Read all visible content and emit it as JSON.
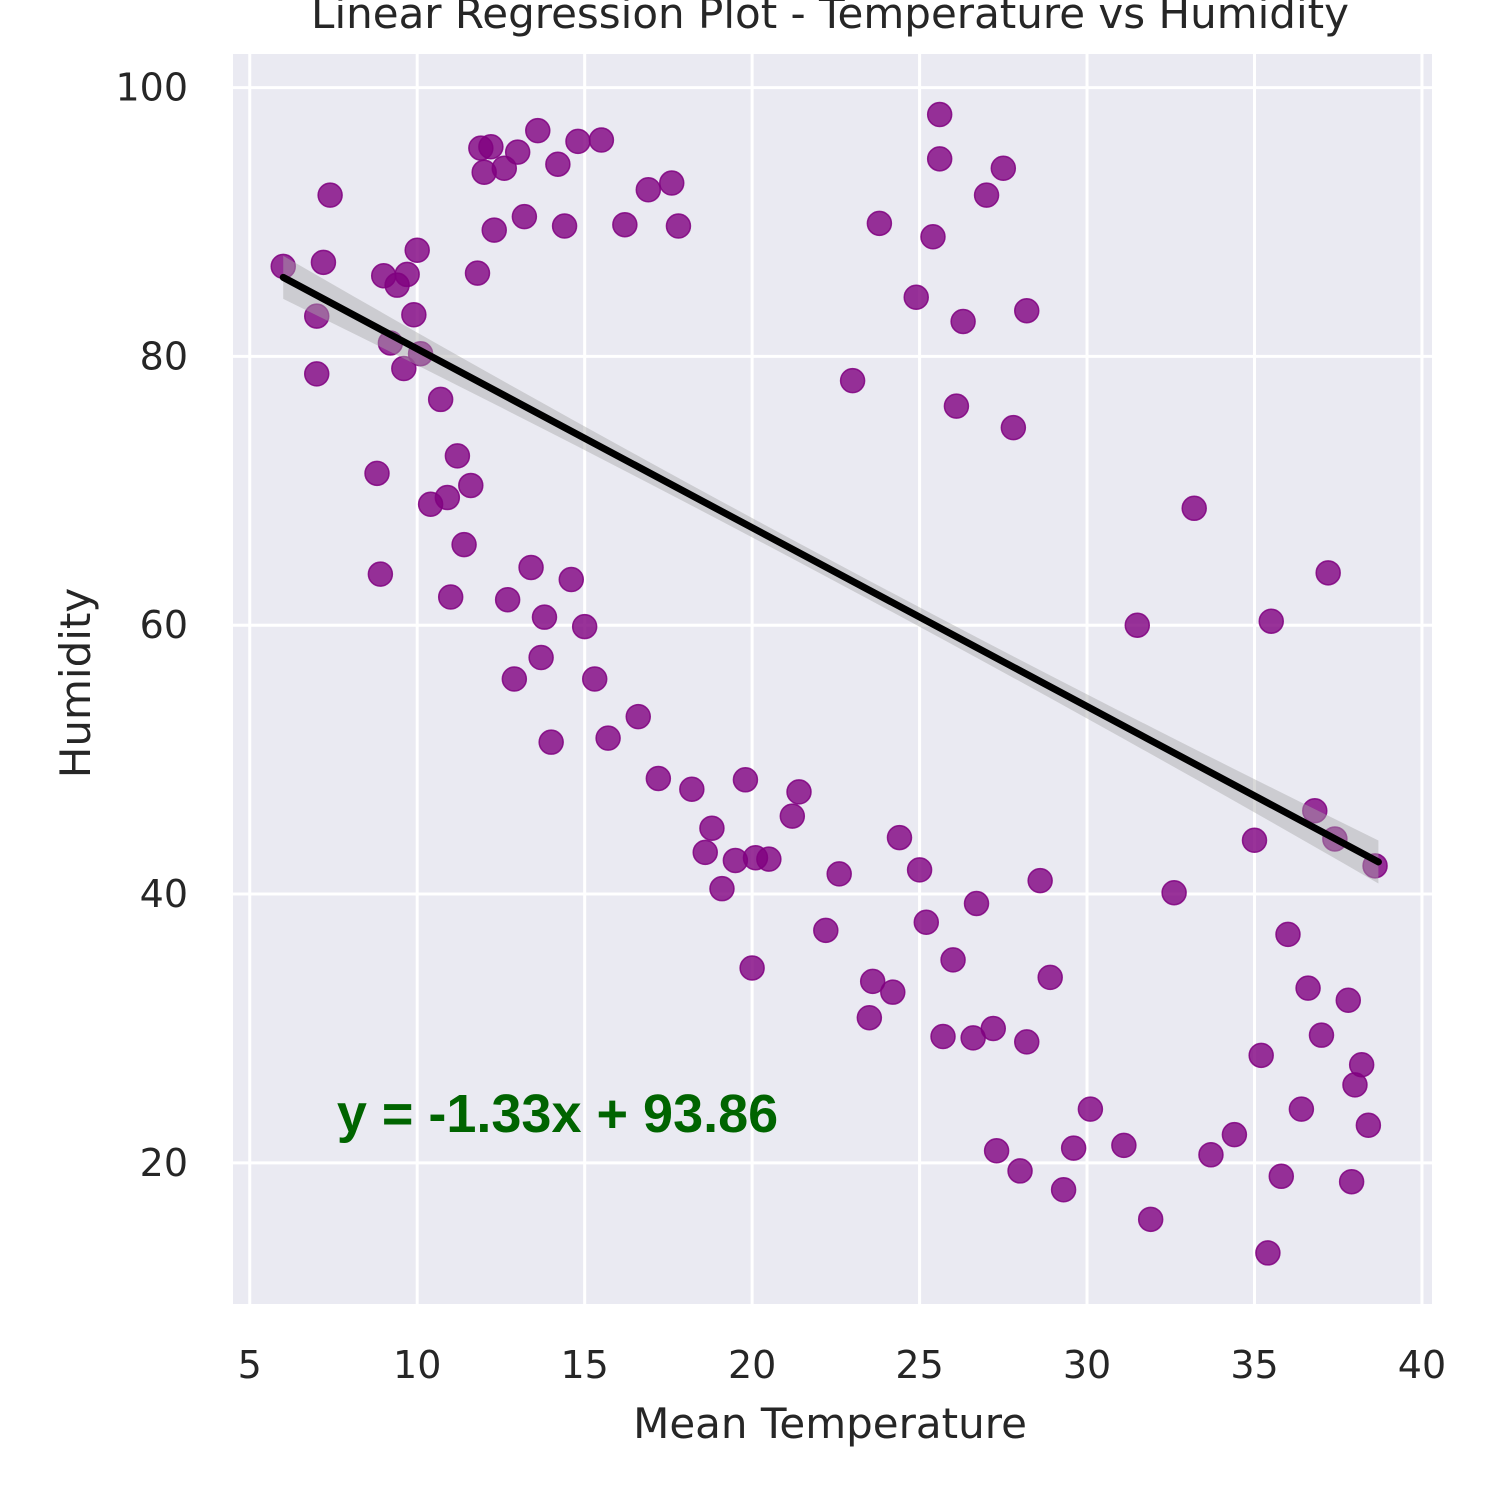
{
  "chart_data": {
    "type": "scatter",
    "title": "Linear Regression Plot - Temperature vs Humidity",
    "xlabel": "Mean Temperature",
    "ylabel": "Humidity",
    "xlim": [
      4.5,
      40.3
    ],
    "ylim": [
      9.5,
      102.5
    ],
    "xticks": [
      5,
      10,
      15,
      20,
      25,
      30,
      35,
      40
    ],
    "yticks": [
      20,
      40,
      60,
      80,
      100
    ],
    "grid": true,
    "point_color": "#800080",
    "line_color": "#000000",
    "annotation": {
      "text": "y = -1.33x + 93.86",
      "color": "#006400",
      "x": 7.6,
      "y": 23.8
    },
    "regression": {
      "slope": -1.33,
      "intercept": 93.86,
      "x_range": [
        6.0,
        38.7
      ]
    },
    "points": [
      [
        6.0,
        86.7
      ],
      [
        7.0,
        83.0
      ],
      [
        7.0,
        78.7
      ],
      [
        7.2,
        87.0
      ],
      [
        7.4,
        92.0
      ],
      [
        8.8,
        71.3
      ],
      [
        8.9,
        63.8
      ],
      [
        9.0,
        86.0
      ],
      [
        9.2,
        81.0
      ],
      [
        9.4,
        85.3
      ],
      [
        9.6,
        79.1
      ],
      [
        9.7,
        86.1
      ],
      [
        9.9,
        83.1
      ],
      [
        10.0,
        87.9
      ],
      [
        10.1,
        80.2
      ],
      [
        10.4,
        69.0
      ],
      [
        10.7,
        76.8
      ],
      [
        10.9,
        69.5
      ],
      [
        11.0,
        62.1
      ],
      [
        11.2,
        72.6
      ],
      [
        11.4,
        66.0
      ],
      [
        11.6,
        70.4
      ],
      [
        11.8,
        86.2
      ],
      [
        11.9,
        95.5
      ],
      [
        12.0,
        93.7
      ],
      [
        12.2,
        95.6
      ],
      [
        12.3,
        89.4
      ],
      [
        12.6,
        94.0
      ],
      [
        12.7,
        61.9
      ],
      [
        12.9,
        56.0
      ],
      [
        13.0,
        95.2
      ],
      [
        13.2,
        90.4
      ],
      [
        13.4,
        64.3
      ],
      [
        13.6,
        96.8
      ],
      [
        13.7,
        57.6
      ],
      [
        13.8,
        60.6
      ],
      [
        14.0,
        51.3
      ],
      [
        14.2,
        94.3
      ],
      [
        14.4,
        89.7
      ],
      [
        14.6,
        63.4
      ],
      [
        14.8,
        96.0
      ],
      [
        15.0,
        59.9
      ],
      [
        15.3,
        56.0
      ],
      [
        15.5,
        96.1
      ],
      [
        15.7,
        51.6
      ],
      [
        16.2,
        89.8
      ],
      [
        16.6,
        53.2
      ],
      [
        16.9,
        92.4
      ],
      [
        17.2,
        48.6
      ],
      [
        17.6,
        92.9
      ],
      [
        17.8,
        89.7
      ],
      [
        18.2,
        47.8
      ],
      [
        18.6,
        43.1
      ],
      [
        18.8,
        44.9
      ],
      [
        19.1,
        40.4
      ],
      [
        19.5,
        42.5
      ],
      [
        19.8,
        48.5
      ],
      [
        20.0,
        34.5
      ],
      [
        20.1,
        42.7
      ],
      [
        20.5,
        42.6
      ],
      [
        21.2,
        45.8
      ],
      [
        21.4,
        47.6
      ],
      [
        22.2,
        37.3
      ],
      [
        22.6,
        41.5
      ],
      [
        23.0,
        78.2
      ],
      [
        23.5,
        30.8
      ],
      [
        23.6,
        33.5
      ],
      [
        23.8,
        89.9
      ],
      [
        24.2,
        32.7
      ],
      [
        24.4,
        44.2
      ],
      [
        24.9,
        84.4
      ],
      [
        25.0,
        41.8
      ],
      [
        25.2,
        37.9
      ],
      [
        25.4,
        88.9
      ],
      [
        25.6,
        98.0
      ],
      [
        25.6,
        94.7
      ],
      [
        25.7,
        29.4
      ],
      [
        26.0,
        35.1
      ],
      [
        26.1,
        76.3
      ],
      [
        26.3,
        82.6
      ],
      [
        26.6,
        29.3
      ],
      [
        26.7,
        39.3
      ],
      [
        27.0,
        92.0
      ],
      [
        27.2,
        30.0
      ],
      [
        27.3,
        20.9
      ],
      [
        27.5,
        94.0
      ],
      [
        27.8,
        74.7
      ],
      [
        28.0,
        19.4
      ],
      [
        28.2,
        29.0
      ],
      [
        28.2,
        83.4
      ],
      [
        28.6,
        41.0
      ],
      [
        28.9,
        33.8
      ],
      [
        29.3,
        18.0
      ],
      [
        29.6,
        21.1
      ],
      [
        30.1,
        24.0
      ],
      [
        31.1,
        21.3
      ],
      [
        31.5,
        60.0
      ],
      [
        31.9,
        15.8
      ],
      [
        32.6,
        40.1
      ],
      [
        33.2,
        68.7
      ],
      [
        33.7,
        20.6
      ],
      [
        34.4,
        22.1
      ],
      [
        35.0,
        44.0
      ],
      [
        35.4,
        13.3
      ],
      [
        35.5,
        60.3
      ],
      [
        35.8,
        19.0
      ],
      [
        36.0,
        37.0
      ],
      [
        36.4,
        24.0
      ],
      [
        37.2,
        63.9
      ],
      [
        37.8,
        32.1
      ],
      [
        37.9,
        18.6
      ],
      [
        38.2,
        27.3
      ],
      [
        38.4,
        22.8
      ],
      [
        38.6,
        42.1
      ],
      [
        36.8,
        46.2
      ],
      [
        37.4,
        44.1
      ],
      [
        36.6,
        33.0
      ],
      [
        37.0,
        29.5
      ],
      [
        35.2,
        28.0
      ],
      [
        38.0,
        25.8
      ]
    ]
  }
}
